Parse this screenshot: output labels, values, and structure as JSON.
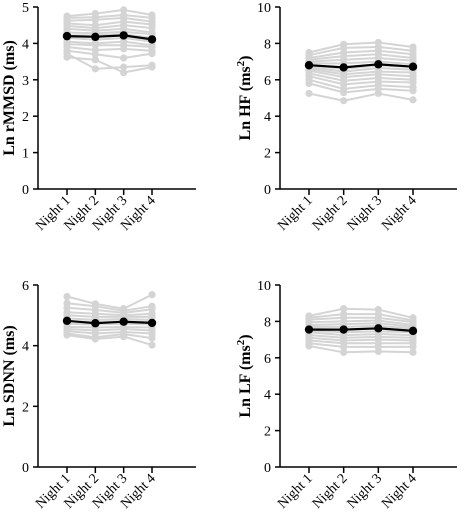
{
  "colors": {
    "individual": "#d4d4d4",
    "mean": "#000000",
    "axis": "#000000"
  },
  "chart_data": [
    {
      "id": "rmssd",
      "type": "line",
      "title": "",
      "ylabel": "Ln rMMSD (ms)",
      "ylabel_parts": [
        {
          "text": "Ln rMMSD (ms)",
          "sup": false
        }
      ],
      "xlabel": "",
      "categories": [
        "Night 1",
        "Night 2",
        "Night 3",
        "Night 4"
      ],
      "ylim": [
        0,
        5
      ],
      "yticks": [
        0,
        1,
        2,
        3,
        4,
        5
      ],
      "grid": false,
      "legend": "none",
      "mean": [
        4.2,
        4.18,
        4.22,
        4.11
      ],
      "individuals": [
        [
          4.75,
          4.82,
          4.92,
          4.78
        ],
        [
          4.7,
          4.72,
          4.78,
          4.7
        ],
        [
          4.62,
          4.65,
          4.7,
          4.6
        ],
        [
          4.55,
          4.5,
          4.6,
          4.52
        ],
        [
          4.48,
          4.42,
          4.5,
          4.42
        ],
        [
          4.4,
          4.35,
          4.4,
          4.3
        ],
        [
          4.3,
          4.28,
          4.32,
          4.25
        ],
        [
          4.22,
          4.22,
          4.25,
          4.15
        ],
        [
          4.15,
          4.1,
          4.15,
          4.05
        ],
        [
          4.05,
          4.0,
          4.05,
          3.95
        ],
        [
          3.98,
          3.95,
          3.95,
          3.9
        ],
        [
          3.9,
          3.82,
          3.85,
          3.8
        ],
        [
          3.8,
          3.7,
          3.6,
          3.72
        ],
        [
          3.72,
          3.3,
          3.35,
          3.4
        ],
        [
          3.62,
          3.55,
          3.2,
          3.35
        ]
      ]
    },
    {
      "id": "hf",
      "type": "line",
      "title": "",
      "ylabel": "Ln HF (ms2)",
      "ylabel_parts": [
        {
          "text": "Ln HF (ms",
          "sup": false
        },
        {
          "text": "2",
          "sup": true
        },
        {
          "text": ")",
          "sup": false
        }
      ],
      "xlabel": "",
      "categories": [
        "Night 1",
        "Night 2",
        "Night 3",
        "Night 4"
      ],
      "ylim": [
        0,
        10
      ],
      "yticks": [
        0,
        2,
        4,
        6,
        8,
        10
      ],
      "grid": false,
      "legend": "none",
      "mean": [
        6.8,
        6.68,
        6.85,
        6.72
      ],
      "individuals": [
        [
          7.5,
          7.95,
          8.05,
          7.8
        ],
        [
          7.35,
          7.75,
          7.8,
          7.6
        ],
        [
          7.2,
          7.5,
          7.6,
          7.4
        ],
        [
          7.1,
          7.3,
          7.4,
          7.2
        ],
        [
          7.0,
          7.1,
          7.2,
          7.05
        ],
        [
          6.9,
          6.9,
          7.0,
          6.85
        ],
        [
          6.8,
          6.6,
          6.8,
          6.7
        ],
        [
          6.7,
          6.45,
          6.65,
          6.55
        ],
        [
          6.6,
          6.3,
          6.45,
          6.4
        ],
        [
          6.5,
          6.15,
          6.3,
          6.2
        ],
        [
          6.35,
          5.95,
          6.1,
          6.0
        ],
        [
          6.2,
          5.75,
          5.9,
          5.85
        ],
        [
          6.0,
          5.5,
          5.7,
          5.6
        ],
        [
          5.8,
          5.3,
          5.5,
          5.4
        ],
        [
          5.25,
          4.85,
          5.25,
          4.9
        ]
      ]
    },
    {
      "id": "sdnn",
      "type": "line",
      "title": "",
      "ylabel": "Ln SDNN (ms)",
      "ylabel_parts": [
        {
          "text": "Ln SDNN (ms)",
          "sup": false
        }
      ],
      "xlabel": "",
      "categories": [
        "Night 1",
        "Night 2",
        "Night 3",
        "Night 4"
      ],
      "ylim": [
        0,
        6
      ],
      "yticks": [
        0,
        2,
        4,
        6
      ],
      "grid": false,
      "legend": "none",
      "mean": [
        4.82,
        4.74,
        4.79,
        4.75
      ],
      "individuals": [
        [
          5.62,
          5.38,
          5.22,
          5.68
        ],
        [
          5.4,
          5.3,
          5.15,
          5.3
        ],
        [
          5.25,
          5.18,
          5.08,
          5.2
        ],
        [
          5.1,
          5.05,
          5.0,
          5.05
        ],
        [
          5.0,
          4.95,
          4.95,
          4.95
        ],
        [
          4.9,
          4.85,
          4.88,
          4.85
        ],
        [
          4.8,
          4.78,
          4.8,
          4.78
        ],
        [
          4.72,
          4.7,
          4.72,
          4.7
        ],
        [
          4.62,
          4.6,
          4.62,
          4.6
        ],
        [
          4.55,
          4.5,
          4.55,
          4.5
        ],
        [
          4.48,
          4.4,
          4.45,
          4.4
        ],
        [
          4.4,
          4.28,
          4.38,
          4.25
        ],
        [
          4.35,
          4.22,
          4.3,
          4.02
        ]
      ]
    },
    {
      "id": "lf",
      "type": "line",
      "title": "",
      "ylabel": "Ln LF (ms2)",
      "ylabel_parts": [
        {
          "text": "Ln LF (ms",
          "sup": false
        },
        {
          "text": "2",
          "sup": true
        },
        {
          "text": ")",
          "sup": false
        }
      ],
      "xlabel": "",
      "categories": [
        "Night 1",
        "Night 2",
        "Night 3",
        "Night 4"
      ],
      "ylim": [
        0,
        10
      ],
      "yticks": [
        0,
        2,
        4,
        6,
        8,
        10
      ],
      "grid": false,
      "legend": "none",
      "mean": [
        7.55,
        7.55,
        7.62,
        7.48
      ],
      "individuals": [
        [
          8.3,
          8.7,
          8.65,
          8.2
        ],
        [
          8.2,
          8.4,
          8.4,
          8.05
        ],
        [
          8.1,
          8.2,
          8.2,
          7.95
        ],
        [
          7.95,
          8.0,
          8.05,
          7.8
        ],
        [
          7.8,
          7.85,
          7.9,
          7.7
        ],
        [
          7.7,
          7.7,
          7.75,
          7.6
        ],
        [
          7.6,
          7.55,
          7.6,
          7.5
        ],
        [
          7.5,
          7.4,
          7.45,
          7.4
        ],
        [
          7.4,
          7.25,
          7.3,
          7.25
        ],
        [
          7.25,
          7.1,
          7.15,
          7.1
        ],
        [
          7.1,
          6.95,
          7.0,
          6.95
        ],
        [
          6.95,
          6.8,
          6.8,
          6.8
        ],
        [
          6.8,
          6.6,
          6.6,
          6.6
        ],
        [
          6.65,
          6.3,
          6.35,
          6.3
        ]
      ]
    }
  ]
}
